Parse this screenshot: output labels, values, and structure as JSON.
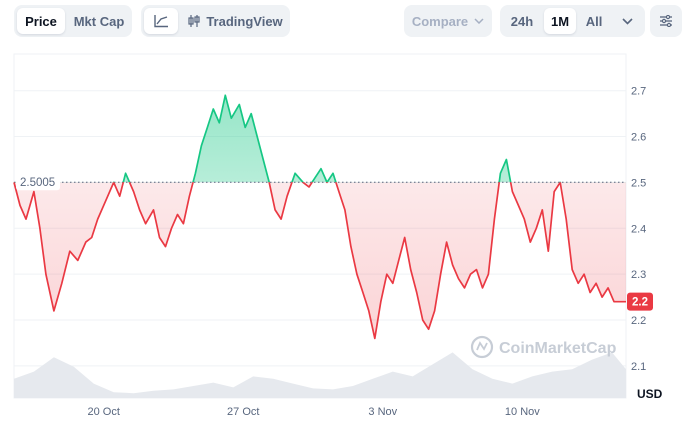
{
  "toolbar": {
    "type_tabs": [
      {
        "label": "Price",
        "active": true
      },
      {
        "label": "Mkt Cap",
        "active": false
      }
    ],
    "line_tool_icon": "line-chart-icon",
    "tradingview_icon": "tradingview-icon",
    "tradingview_label": "TradingView",
    "compare_label": "Compare",
    "range_tabs": [
      {
        "label": "24h",
        "active": false
      },
      {
        "label": "1M",
        "active": true
      },
      {
        "label": "All",
        "active": false
      }
    ],
    "range_dropdown_icon": "chevron-down-icon",
    "settings_icon": "sliders-icon"
  },
  "colors": {
    "up": "#16c784",
    "down": "#ea3943",
    "reference": "#58667e",
    "text_muted": "#58667e",
    "grid": "#eff2f5"
  },
  "watermark": "CoinMarketCap",
  "currency_label": "USD",
  "chart_data": {
    "type": "line",
    "baseline_label": "2.5005",
    "baseline_value": 2.5005,
    "current_price_label": "2.2",
    "current_price": 2.24,
    "ylim": [
      2.03,
      2.78
    ],
    "y_ticks": [
      {
        "value": 2.7,
        "label": "2.7"
      },
      {
        "value": 2.6,
        "label": "2.6"
      },
      {
        "value": 2.5,
        "label": "2.5"
      },
      {
        "value": 2.4,
        "label": "2.4"
      },
      {
        "value": 2.3,
        "label": "2.3"
      },
      {
        "value": 2.2,
        "label": "2.2"
      },
      {
        "value": 2.1,
        "label": "2.1"
      }
    ],
    "x_ticks": [
      {
        "day": 20,
        "label": "20 Oct"
      },
      {
        "day": 27,
        "label": "27 Oct"
      },
      {
        "day": 34,
        "label": "3 Nov"
      },
      {
        "day": 41,
        "label": "10 Nov"
      }
    ],
    "xlim": [
      15.5,
      46.2
    ],
    "price_series": {
      "x": [
        15.5,
        15.8,
        16.1,
        16.5,
        16.8,
        17.1,
        17.5,
        17.9,
        18.3,
        18.7,
        19.1,
        19.4,
        19.7,
        20.1,
        20.5,
        20.8,
        21.1,
        21.5,
        21.8,
        22.1,
        22.5,
        22.8,
        23.1,
        23.4,
        23.7,
        24.0,
        24.3,
        24.6,
        24.9,
        25.2,
        25.5,
        25.8,
        26.1,
        26.4,
        26.8,
        27.1,
        27.4,
        27.7,
        28.0,
        28.3,
        28.6,
        28.9,
        29.2,
        29.6,
        30.0,
        30.3,
        30.6,
        30.9,
        31.2,
        31.5,
        31.8,
        32.1,
        32.4,
        32.7,
        33.0,
        33.3,
        33.6,
        33.9,
        34.2,
        34.5,
        34.8,
        35.1,
        35.4,
        35.7,
        36.0,
        36.3,
        36.6,
        36.9,
        37.2,
        37.5,
        37.8,
        38.1,
        38.4,
        38.7,
        39.0,
        39.3,
        39.6,
        39.9,
        40.2,
        40.5,
        40.8,
        41.1,
        41.4,
        41.7,
        42.0,
        42.3,
        42.6,
        42.9,
        43.2,
        43.5,
        43.8,
        44.1,
        44.4,
        44.7,
        45.0,
        45.3,
        45.6,
        45.9,
        46.2
      ],
      "y": [
        2.5,
        2.45,
        2.42,
        2.48,
        2.4,
        2.3,
        2.22,
        2.28,
        2.35,
        2.33,
        2.37,
        2.38,
        2.42,
        2.46,
        2.5,
        2.47,
        2.52,
        2.48,
        2.44,
        2.41,
        2.44,
        2.38,
        2.36,
        2.4,
        2.43,
        2.41,
        2.47,
        2.52,
        2.58,
        2.62,
        2.66,
        2.63,
        2.69,
        2.64,
        2.67,
        2.62,
        2.65,
        2.6,
        2.55,
        2.5,
        2.44,
        2.42,
        2.47,
        2.52,
        2.5,
        2.49,
        2.51,
        2.53,
        2.5,
        2.52,
        2.48,
        2.44,
        2.36,
        2.3,
        2.26,
        2.22,
        2.16,
        2.24,
        2.3,
        2.28,
        2.33,
        2.38,
        2.31,
        2.26,
        2.2,
        2.18,
        2.22,
        2.3,
        2.37,
        2.32,
        2.29,
        2.27,
        2.3,
        2.31,
        2.27,
        2.3,
        2.42,
        2.52,
        2.55,
        2.48,
        2.45,
        2.42,
        2.37,
        2.4,
        2.44,
        2.35,
        2.48,
        2.5,
        2.42,
        2.31,
        2.28,
        2.3,
        2.26,
        2.28,
        2.25,
        2.27,
        2.24,
        2.24,
        2.24
      ]
    },
    "volume_series": {
      "x": [
        15.5,
        16.5,
        17.5,
        18.5,
        19.5,
        20.5,
        21.5,
        22.5,
        23.5,
        24.5,
        25.5,
        26.5,
        27.5,
        28.5,
        29.5,
        30.5,
        31.5,
        32.5,
        33.5,
        34.5,
        35.5,
        36.5,
        37.5,
        38.5,
        39.5,
        40.5,
        41.5,
        42.5,
        43.5,
        44.5,
        45.5,
        46.2
      ],
      "y": [
        0.4,
        0.55,
        0.85,
        0.65,
        0.3,
        0.12,
        0.1,
        0.15,
        0.18,
        0.25,
        0.32,
        0.22,
        0.45,
        0.4,
        0.3,
        0.2,
        0.18,
        0.25,
        0.4,
        0.55,
        0.45,
        0.7,
        0.95,
        0.6,
        0.4,
        0.3,
        0.45,
        0.55,
        0.6,
        0.8,
        0.95,
        0.6
      ]
    }
  }
}
